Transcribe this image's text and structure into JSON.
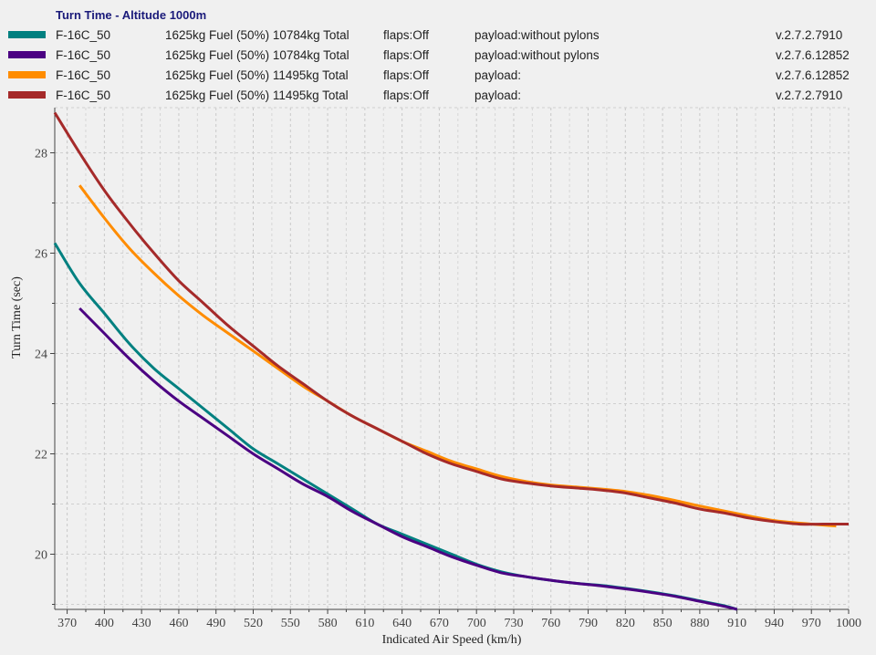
{
  "legend": {
    "title": "Turn Time - Altitude 1000m",
    "entries": [
      {
        "name": "F-16C_50",
        "fuel": "1625kg Fuel (50%) 10784kg Total",
        "flaps": "flaps:Off",
        "payload": "payload:without pylons",
        "version": "v.2.7.2.7910",
        "color": "#008080"
      },
      {
        "name": "F-16C_50",
        "fuel": "1625kg Fuel (50%) 10784kg Total",
        "flaps": "flaps:Off",
        "payload": "payload:without pylons",
        "version": "v.2.7.6.12852",
        "color": "#4b0082"
      },
      {
        "name": "F-16C_50",
        "fuel": "1625kg Fuel (50%) 11495kg Total",
        "flaps": "flaps:Off",
        "payload": "payload:",
        "version": "v.2.7.6.12852",
        "color": "#ff8c00"
      },
      {
        "name": "F-16C_50",
        "fuel": "1625kg Fuel (50%) 11495kg Total",
        "flaps": "flaps:Off",
        "payload": "payload:",
        "version": "v.2.7.2.7910",
        "color": "#a52a2a"
      }
    ]
  },
  "chart_data": {
    "type": "line",
    "title": "Turn Time - Altitude 1000m",
    "xlabel": "Indicated Air Speed (km/h)",
    "ylabel": "Turn Time (sec)",
    "xlim": [
      360,
      1000
    ],
    "ylim": [
      18.9,
      28.9
    ],
    "xticks": [
      370,
      400,
      430,
      460,
      490,
      520,
      550,
      580,
      610,
      640,
      670,
      700,
      730,
      760,
      790,
      820,
      850,
      880,
      910,
      940,
      970,
      1000
    ],
    "yticks": [
      20,
      22,
      24,
      26,
      28
    ],
    "grid": true,
    "legend_position": "top",
    "series": [
      {
        "name": "F-16C_50 v.2.7.2.7910 (10784kg)",
        "color": "#008080",
        "x": [
          360,
          380,
          400,
          420,
          440,
          460,
          480,
          500,
          520,
          540,
          560,
          580,
          600,
          620,
          640,
          660,
          680,
          700,
          720,
          740,
          760,
          780,
          800,
          820,
          840,
          860,
          880,
          900,
          910
        ],
        "y": [
          26.2,
          25.4,
          24.8,
          24.2,
          23.7,
          23.3,
          22.9,
          22.5,
          22.1,
          21.8,
          21.5,
          21.2,
          20.9,
          20.6,
          20.4,
          20.2,
          20.0,
          19.8,
          19.65,
          19.55,
          19.48,
          19.42,
          19.38,
          19.32,
          19.25,
          19.17,
          19.07,
          18.97,
          18.9
        ]
      },
      {
        "name": "F-16C_50 v.2.7.6.12852 (10784kg)",
        "color": "#4b0082",
        "x": [
          380,
          400,
          420,
          440,
          460,
          480,
          500,
          520,
          540,
          560,
          580,
          600,
          620,
          640,
          660,
          680,
          700,
          720,
          740,
          760,
          780,
          800,
          820,
          840,
          860,
          880,
          900,
          910
        ],
        "y": [
          24.9,
          24.4,
          23.9,
          23.45,
          23.05,
          22.7,
          22.35,
          22.0,
          21.7,
          21.4,
          21.15,
          20.85,
          20.6,
          20.35,
          20.15,
          19.95,
          19.78,
          19.63,
          19.55,
          19.48,
          19.42,
          19.37,
          19.31,
          19.24,
          19.16,
          19.06,
          18.96,
          18.9
        ]
      },
      {
        "name": "F-16C_50 v.2.7.6.12852 (11495kg)",
        "color": "#ff8c00",
        "x": [
          380,
          400,
          420,
          440,
          460,
          480,
          500,
          520,
          540,
          560,
          580,
          600,
          620,
          640,
          660,
          680,
          700,
          720,
          740,
          760,
          780,
          800,
          820,
          840,
          860,
          880,
          900,
          920,
          940,
          960,
          980,
          990
        ],
        "y": [
          27.35,
          26.7,
          26.1,
          25.6,
          25.15,
          24.75,
          24.4,
          24.05,
          23.7,
          23.35,
          23.05,
          22.75,
          22.5,
          22.25,
          22.05,
          21.85,
          21.7,
          21.55,
          21.45,
          21.38,
          21.34,
          21.3,
          21.25,
          21.17,
          21.07,
          20.96,
          20.86,
          20.76,
          20.67,
          20.62,
          20.58,
          20.56
        ]
      },
      {
        "name": "F-16C_50 v.2.7.2.7910 (11495kg)",
        "color": "#a52a2a",
        "x": [
          360,
          380,
          400,
          420,
          440,
          460,
          480,
          500,
          520,
          540,
          560,
          580,
          600,
          620,
          640,
          660,
          680,
          700,
          720,
          740,
          760,
          780,
          800,
          820,
          840,
          860,
          880,
          900,
          920,
          940,
          960,
          980,
          1000
        ],
        "y": [
          28.8,
          28.0,
          27.25,
          26.6,
          26.0,
          25.45,
          25.0,
          24.55,
          24.15,
          23.75,
          23.4,
          23.05,
          22.75,
          22.5,
          22.25,
          22.0,
          21.8,
          21.65,
          21.5,
          21.42,
          21.36,
          21.32,
          21.28,
          21.22,
          21.12,
          21.02,
          20.9,
          20.82,
          20.72,
          20.65,
          20.6,
          20.6,
          20.6
        ]
      }
    ]
  }
}
